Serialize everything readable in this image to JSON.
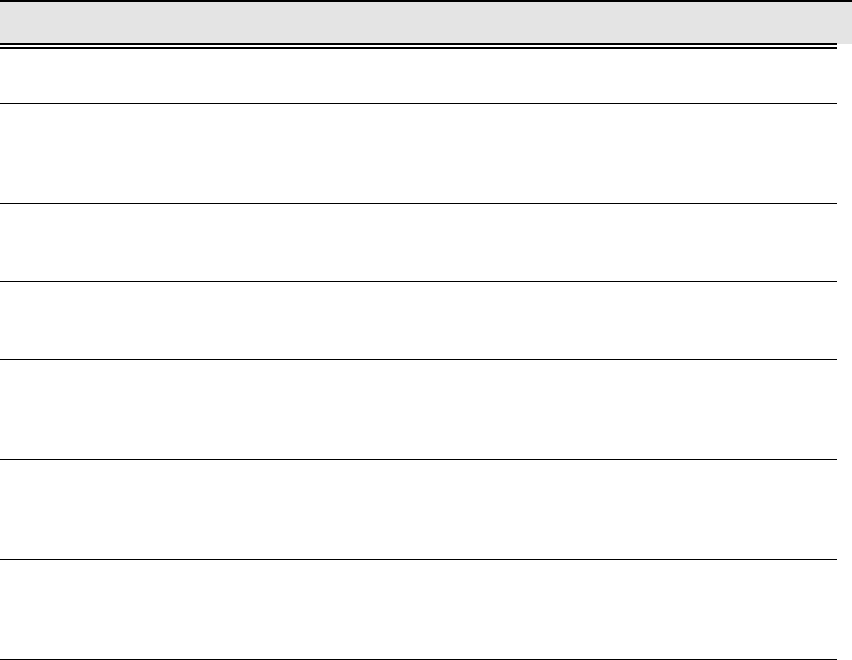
{
  "colors": {
    "header_background": "#e4e4e4",
    "rule": "#000000"
  },
  "table": {
    "header": "",
    "rows": [
      {
        "text": ""
      },
      {
        "text": ""
      },
      {
        "text": ""
      },
      {
        "text": ""
      },
      {
        "text": ""
      },
      {
        "text": ""
      },
      {
        "text": ""
      }
    ]
  }
}
